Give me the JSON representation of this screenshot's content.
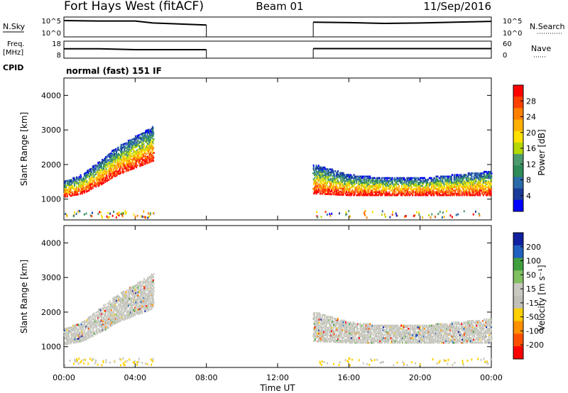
{
  "header": {
    "station": "Fort Hays West (fitACF)",
    "beam": "Beam 01",
    "date": "11/Sep/2016"
  },
  "labels": {
    "nsky": "N.Sky",
    "nsearch": "N.Search",
    "freq_line1": "Freq.",
    "freq_line2": "[MHz]",
    "nave": "Nave",
    "cpid": "CPID",
    "cpid_value": "normal (fast) 151 IF"
  },
  "chart_data": [
    {
      "type": "line",
      "panel": "noise",
      "x_unit": "hours UT",
      "left_ticks": [
        "10^5",
        "10^0"
      ],
      "right_ticks": [
        "10^5",
        "10^0"
      ],
      "segments": [
        {
          "x": [
            0,
            2,
            4,
            5,
            8
          ],
          "y": [
            0.82,
            0.8,
            0.8,
            0.7,
            0.6
          ]
        },
        {
          "x": [
            14,
            16,
            18,
            20,
            22,
            24
          ],
          "y": [
            0.74,
            0.72,
            0.68,
            0.7,
            0.74,
            0.78
          ]
        }
      ]
    },
    {
      "type": "line",
      "panel": "frequency",
      "x_unit": "hours UT",
      "left_ticks": [
        "18",
        "8"
      ],
      "right_ticks": [
        "60",
        "0"
      ],
      "segments": [
        {
          "x": [
            0,
            2,
            4,
            8
          ],
          "y": [
            0.55,
            0.55,
            0.5,
            0.5
          ]
        },
        {
          "x": [
            14,
            18,
            24
          ],
          "y": [
            0.56,
            0.56,
            0.56
          ]
        }
      ]
    },
    {
      "type": "heatmap",
      "panel": "power",
      "ylabel": "Slant Range [km]",
      "ylim": [
        400,
        4500
      ],
      "yticks": [
        "1000",
        "2000",
        "3000",
        "4000"
      ],
      "xlim": [
        0,
        24
      ],
      "colorbar": {
        "label": "Power [dB]",
        "ticks": [
          "28",
          "24",
          "20",
          "16",
          "12",
          "8",
          "4"
        ],
        "colors": [
          "#ff0000",
          "#ff4000",
          "#ff8000",
          "#ffb000",
          "#ffe000",
          "#b4d800",
          "#4c9b6e",
          "#2e8b57",
          "#2a6aa8",
          "#1a3a9a",
          "#0000ff"
        ]
      },
      "bands": [
        {
          "x": [
            0,
            1,
            2,
            3,
            4,
            5
          ],
          "lower": [
            1050,
            1150,
            1400,
            1700,
            1900,
            2100
          ],
          "upper": [
            1500,
            1700,
            2100,
            2500,
            2800,
            3100
          ]
        },
        {
          "x": [
            14,
            16,
            18,
            20,
            22,
            24
          ],
          "lower": [
            1150,
            1100,
            1100,
            1100,
            1100,
            1100
          ],
          "upper": [
            2000,
            1700,
            1600,
            1600,
            1700,
            1800
          ]
        }
      ]
    },
    {
      "type": "heatmap",
      "panel": "velocity",
      "ylabel": "Slant Range [km]",
      "xlabel": "Time UT",
      "ylim": [
        400,
        4500
      ],
      "yticks": [
        "1000",
        "2000",
        "3000",
        "4000"
      ],
      "xlim": [
        0,
        24
      ],
      "xticks": [
        "00:00",
        "04:00",
        "08:00",
        "12:00",
        "16:00",
        "20:00",
        "00:00"
      ],
      "colorbar": {
        "label": "Velocity [m s⁻¹]",
        "ticks": [
          "200",
          "100",
          "50",
          "15",
          "-15",
          "-50",
          "-100",
          "-200"
        ],
        "colors": [
          "#1020a0",
          "#2060c0",
          "#40a040",
          "#80c060",
          "#c8c8c0",
          "#c0c0b8",
          "#ffd000",
          "#ff9000",
          "#ff5000",
          "#ff0000"
        ]
      },
      "bands": [
        {
          "x": [
            0,
            1,
            2,
            3,
            4,
            5
          ],
          "lower": [
            1050,
            1150,
            1400,
            1700,
            1900,
            2100
          ],
          "upper": [
            1500,
            1700,
            2100,
            2500,
            2800,
            3100
          ]
        },
        {
          "x": [
            14,
            16,
            18,
            20,
            22,
            24
          ],
          "lower": [
            1150,
            1100,
            1100,
            1100,
            1100,
            1100
          ],
          "upper": [
            2000,
            1700,
            1600,
            1600,
            1700,
            1800
          ]
        }
      ]
    }
  ]
}
